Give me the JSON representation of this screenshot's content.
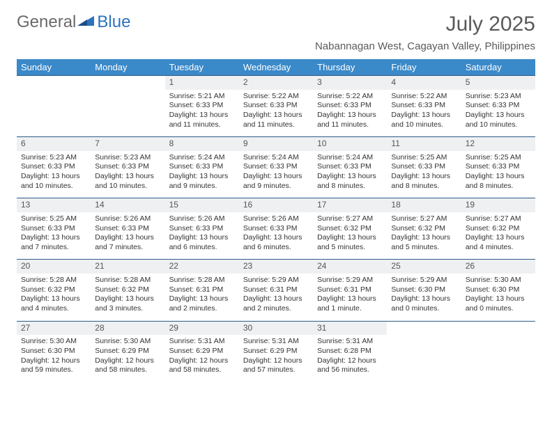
{
  "logo": {
    "text1": "General",
    "text2": "Blue"
  },
  "title": "July 2025",
  "location": "Nabannagan West, Cagayan Valley, Philippines",
  "colors": {
    "header_bg": "#3a89c9",
    "header_text": "#ffffff",
    "row_border": "#2d5b88",
    "daynum_bg": "#eef0f2",
    "text": "#333333",
    "logo_gray": "#6a6a6a",
    "logo_blue": "#2d72bb"
  },
  "weekdays": [
    "Sunday",
    "Monday",
    "Tuesday",
    "Wednesday",
    "Thursday",
    "Friday",
    "Saturday"
  ],
  "weeks": [
    [
      null,
      null,
      {
        "n": "1",
        "sr": "Sunrise: 5:21 AM",
        "ss": "Sunset: 6:33 PM",
        "dl": "Daylight: 13 hours and 11 minutes."
      },
      {
        "n": "2",
        "sr": "Sunrise: 5:22 AM",
        "ss": "Sunset: 6:33 PM",
        "dl": "Daylight: 13 hours and 11 minutes."
      },
      {
        "n": "3",
        "sr": "Sunrise: 5:22 AM",
        "ss": "Sunset: 6:33 PM",
        "dl": "Daylight: 13 hours and 11 minutes."
      },
      {
        "n": "4",
        "sr": "Sunrise: 5:22 AM",
        "ss": "Sunset: 6:33 PM",
        "dl": "Daylight: 13 hours and 10 minutes."
      },
      {
        "n": "5",
        "sr": "Sunrise: 5:23 AM",
        "ss": "Sunset: 6:33 PM",
        "dl": "Daylight: 13 hours and 10 minutes."
      }
    ],
    [
      {
        "n": "6",
        "sr": "Sunrise: 5:23 AM",
        "ss": "Sunset: 6:33 PM",
        "dl": "Daylight: 13 hours and 10 minutes."
      },
      {
        "n": "7",
        "sr": "Sunrise: 5:23 AM",
        "ss": "Sunset: 6:33 PM",
        "dl": "Daylight: 13 hours and 10 minutes."
      },
      {
        "n": "8",
        "sr": "Sunrise: 5:24 AM",
        "ss": "Sunset: 6:33 PM",
        "dl": "Daylight: 13 hours and 9 minutes."
      },
      {
        "n": "9",
        "sr": "Sunrise: 5:24 AM",
        "ss": "Sunset: 6:33 PM",
        "dl": "Daylight: 13 hours and 9 minutes."
      },
      {
        "n": "10",
        "sr": "Sunrise: 5:24 AM",
        "ss": "Sunset: 6:33 PM",
        "dl": "Daylight: 13 hours and 8 minutes."
      },
      {
        "n": "11",
        "sr": "Sunrise: 5:25 AM",
        "ss": "Sunset: 6:33 PM",
        "dl": "Daylight: 13 hours and 8 minutes."
      },
      {
        "n": "12",
        "sr": "Sunrise: 5:25 AM",
        "ss": "Sunset: 6:33 PM",
        "dl": "Daylight: 13 hours and 8 minutes."
      }
    ],
    [
      {
        "n": "13",
        "sr": "Sunrise: 5:25 AM",
        "ss": "Sunset: 6:33 PM",
        "dl": "Daylight: 13 hours and 7 minutes."
      },
      {
        "n": "14",
        "sr": "Sunrise: 5:26 AM",
        "ss": "Sunset: 6:33 PM",
        "dl": "Daylight: 13 hours and 7 minutes."
      },
      {
        "n": "15",
        "sr": "Sunrise: 5:26 AM",
        "ss": "Sunset: 6:33 PM",
        "dl": "Daylight: 13 hours and 6 minutes."
      },
      {
        "n": "16",
        "sr": "Sunrise: 5:26 AM",
        "ss": "Sunset: 6:33 PM",
        "dl": "Daylight: 13 hours and 6 minutes."
      },
      {
        "n": "17",
        "sr": "Sunrise: 5:27 AM",
        "ss": "Sunset: 6:32 PM",
        "dl": "Daylight: 13 hours and 5 minutes."
      },
      {
        "n": "18",
        "sr": "Sunrise: 5:27 AM",
        "ss": "Sunset: 6:32 PM",
        "dl": "Daylight: 13 hours and 5 minutes."
      },
      {
        "n": "19",
        "sr": "Sunrise: 5:27 AM",
        "ss": "Sunset: 6:32 PM",
        "dl": "Daylight: 13 hours and 4 minutes."
      }
    ],
    [
      {
        "n": "20",
        "sr": "Sunrise: 5:28 AM",
        "ss": "Sunset: 6:32 PM",
        "dl": "Daylight: 13 hours and 4 minutes."
      },
      {
        "n": "21",
        "sr": "Sunrise: 5:28 AM",
        "ss": "Sunset: 6:32 PM",
        "dl": "Daylight: 13 hours and 3 minutes."
      },
      {
        "n": "22",
        "sr": "Sunrise: 5:28 AM",
        "ss": "Sunset: 6:31 PM",
        "dl": "Daylight: 13 hours and 2 minutes."
      },
      {
        "n": "23",
        "sr": "Sunrise: 5:29 AM",
        "ss": "Sunset: 6:31 PM",
        "dl": "Daylight: 13 hours and 2 minutes."
      },
      {
        "n": "24",
        "sr": "Sunrise: 5:29 AM",
        "ss": "Sunset: 6:31 PM",
        "dl": "Daylight: 13 hours and 1 minute."
      },
      {
        "n": "25",
        "sr": "Sunrise: 5:29 AM",
        "ss": "Sunset: 6:30 PM",
        "dl": "Daylight: 13 hours and 0 minutes."
      },
      {
        "n": "26",
        "sr": "Sunrise: 5:30 AM",
        "ss": "Sunset: 6:30 PM",
        "dl": "Daylight: 13 hours and 0 minutes."
      }
    ],
    [
      {
        "n": "27",
        "sr": "Sunrise: 5:30 AM",
        "ss": "Sunset: 6:30 PM",
        "dl": "Daylight: 12 hours and 59 minutes."
      },
      {
        "n": "28",
        "sr": "Sunrise: 5:30 AM",
        "ss": "Sunset: 6:29 PM",
        "dl": "Daylight: 12 hours and 58 minutes."
      },
      {
        "n": "29",
        "sr": "Sunrise: 5:31 AM",
        "ss": "Sunset: 6:29 PM",
        "dl": "Daylight: 12 hours and 58 minutes."
      },
      {
        "n": "30",
        "sr": "Sunrise: 5:31 AM",
        "ss": "Sunset: 6:29 PM",
        "dl": "Daylight: 12 hours and 57 minutes."
      },
      {
        "n": "31",
        "sr": "Sunrise: 5:31 AM",
        "ss": "Sunset: 6:28 PM",
        "dl": "Daylight: 12 hours and 56 minutes."
      },
      null,
      null
    ]
  ]
}
